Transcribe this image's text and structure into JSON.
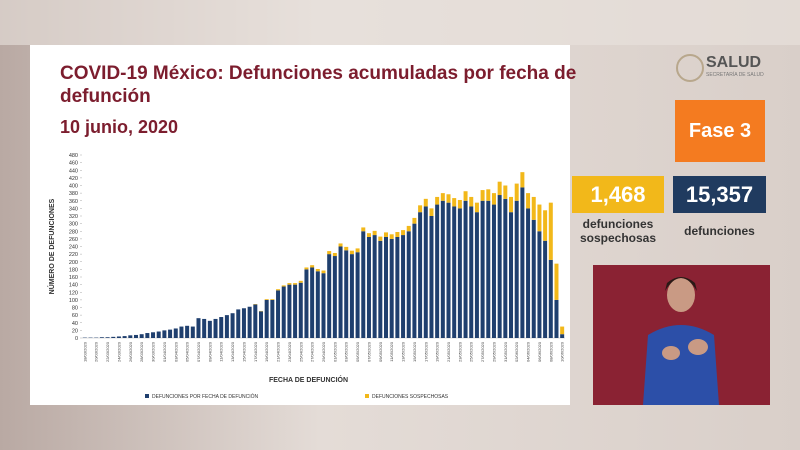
{
  "chart_data": {
    "type": "stacked_bar",
    "title": "COVID-19 México: Defunciones acumuladas por fecha de defunción",
    "subtitle": "10 junio, 2020",
    "x_label": "FECHA DE DEFUNCIÓN",
    "y_label": "NÚMERO DE DEFUNCIONES",
    "categories": [
      "18/03/2020",
      null,
      "20/03/2020",
      null,
      "22/03/2020",
      null,
      "24/03/2020",
      null,
      "26/03/2020",
      null,
      "28/03/2020",
      null,
      "30/03/2020",
      null,
      "01/04/2020",
      null,
      "03/04/2020",
      null,
      "05/04/2020",
      null,
      "07/04/2020",
      null,
      "09/04/2020",
      null,
      "11/04/2020",
      null,
      "13/04/2020",
      null,
      "15/04/2020",
      null,
      "17/04/2020",
      null,
      "19/04/2020",
      null,
      "21/04/2020",
      null,
      "23/04/2020",
      null,
      "25/04/2020",
      null,
      "27/04/2020",
      null,
      "29/04/2020",
      null,
      "01/05/2020",
      null,
      "03/05/2020",
      null,
      "05/05/2020",
      null,
      "07/05/2020",
      null,
      "09/05/2020",
      null,
      "11/05/2020",
      null,
      "13/05/2020",
      null,
      "15/05/2020",
      null,
      "17/05/2020",
      null,
      "19/05/2020",
      null,
      "21/05/2020",
      null,
      "23/05/2020",
      null,
      "25/05/2020",
      null,
      "27/05/2020",
      null,
      "29/05/2020",
      null,
      "31/05/2020",
      null,
      "02/06/2020",
      null,
      "04/06/2020",
      null,
      "06/06/2020",
      null,
      "08/06/2020",
      null,
      "10/06/2020"
    ],
    "series": [
      {
        "name": "DEFUNCIONES POR FECHA DE DEFUNCIÓN",
        "color": "#1f3f6e",
        "values": [
          1,
          1,
          1,
          2,
          2,
          3,
          4,
          5,
          7,
          8,
          10,
          13,
          15,
          17,
          20,
          22,
          25,
          30,
          32,
          30,
          52,
          50,
          45,
          50,
          55,
          60,
          65,
          75,
          78,
          82,
          88,
          70,
          100,
          100,
          125,
          135,
          140,
          140,
          145,
          180,
          185,
          175,
          170,
          220,
          215,
          240,
          230,
          220,
          225,
          280,
          265,
          270,
          255,
          265,
          260,
          265,
          270,
          280,
          300,
          330,
          345,
          320,
          350,
          360,
          355,
          345,
          340,
          360,
          345,
          330,
          360,
          360,
          350,
          375,
          365,
          330,
          360,
          395,
          340,
          310,
          280,
          255,
          205,
          100,
          10
        ]
      },
      {
        "name": "DEFUNCIONES SOSPECHOSAS",
        "color": "#f2b81a",
        "values": [
          0,
          0,
          0,
          0,
          0,
          0,
          0,
          0,
          0,
          0,
          0,
          0,
          0,
          0,
          0,
          0,
          0,
          0,
          0,
          0,
          0,
          0,
          0,
          0,
          0,
          0,
          0,
          0,
          0,
          0,
          1,
          1,
          2,
          2,
          3,
          3,
          4,
          4,
          5,
          5,
          6,
          6,
          7,
          8,
          8,
          8,
          9,
          9,
          10,
          10,
          10,
          11,
          11,
          12,
          12,
          13,
          13,
          14,
          15,
          18,
          20,
          20,
          20,
          20,
          22,
          22,
          22,
          25,
          25,
          25,
          28,
          30,
          30,
          35,
          35,
          40,
          45,
          40,
          40,
          60,
          70,
          80,
          150,
          95,
          20
        ]
      }
    ],
    "ylim": [
      0,
      480
    ],
    "yticks": [
      0,
      20,
      40,
      60,
      80,
      100,
      120,
      140,
      160,
      180,
      200,
      220,
      240,
      260,
      280,
      300,
      320,
      340,
      360,
      380,
      400,
      420,
      440,
      460,
      480
    ]
  },
  "logo": {
    "name": "SALUD",
    "subtitle": "SECRETARÍA DE SALUD"
  },
  "phase": "Fase 3",
  "counters": [
    {
      "value": "1,468",
      "label": "defunciones sospechosas"
    },
    {
      "value": "15,357",
      "label": "defunciones"
    }
  ]
}
